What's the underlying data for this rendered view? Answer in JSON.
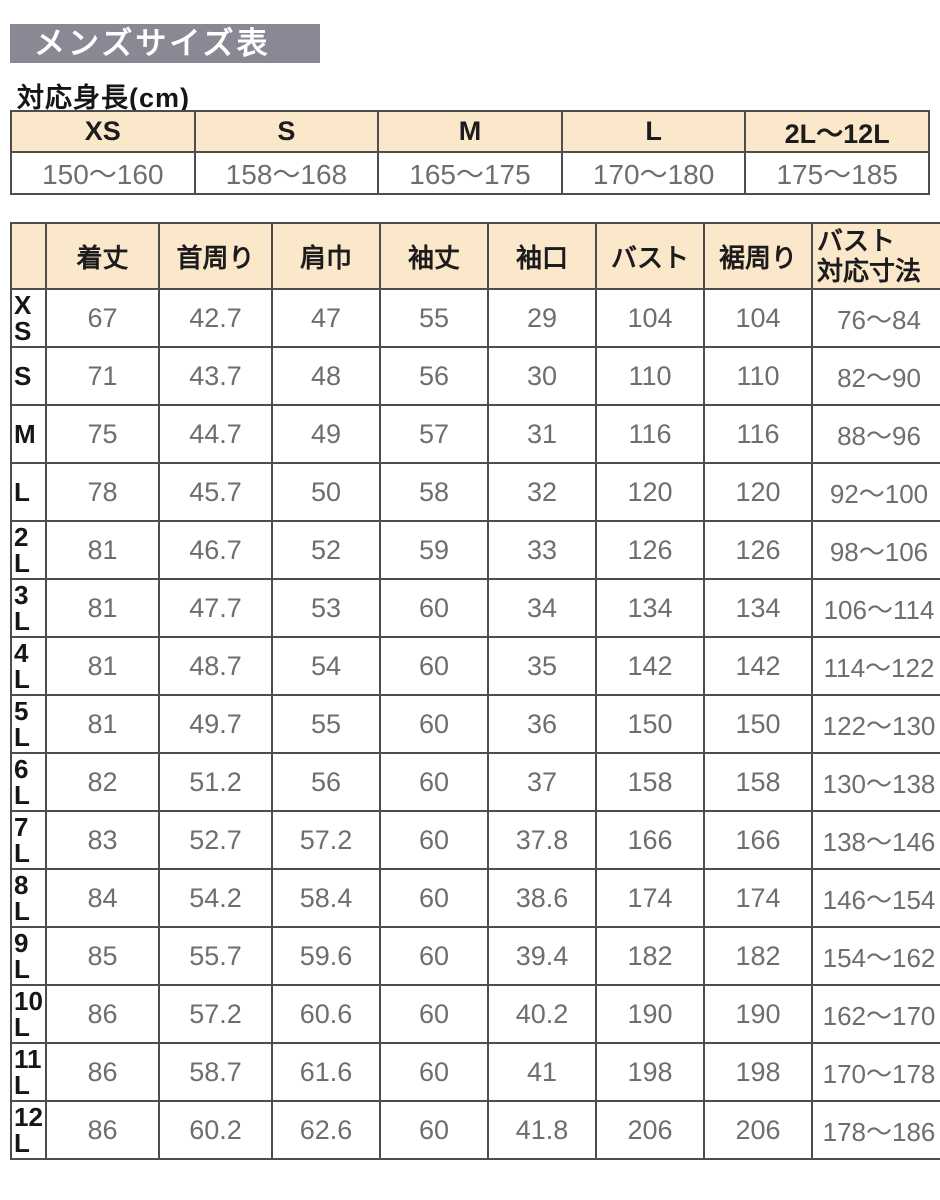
{
  "page_title": "メンズサイズ表",
  "colors": {
    "title_bg": "#8b8794",
    "title_text": "#ffffff",
    "table_header_bg": "#fbe7ca",
    "table_border": "#4d4d4d",
    "header_text": "#1c1c1c",
    "data_text": "#6e6e6e"
  },
  "height_section": {
    "label": "対応身長(cm)",
    "columns": [
      "XS",
      "S",
      "M",
      "L",
      "2L〜12L"
    ],
    "values": [
      "150〜160",
      "158〜168",
      "165〜175",
      "170〜180",
      "175〜185"
    ]
  },
  "size_table": {
    "corner_label": "",
    "columns": [
      "着丈",
      "首周り",
      "肩巾",
      "袖丈",
      "袖口",
      "バスト",
      "裾周り",
      "バスト\n対応寸法"
    ],
    "rows": [
      {
        "size": "XS",
        "label": "X\nS",
        "values": [
          "67",
          "42.7",
          "47",
          "55",
          "29",
          "104",
          "104",
          "76〜84"
        ]
      },
      {
        "size": "S",
        "label": "S",
        "values": [
          "71",
          "43.7",
          "48",
          "56",
          "30",
          "110",
          "110",
          "82〜90"
        ]
      },
      {
        "size": "M",
        "label": "M",
        "values": [
          "75",
          "44.7",
          "49",
          "57",
          "31",
          "116",
          "116",
          "88〜96"
        ]
      },
      {
        "size": "L",
        "label": "L",
        "values": [
          "78",
          "45.7",
          "50",
          "58",
          "32",
          "120",
          "120",
          "92〜100"
        ]
      },
      {
        "size": "2L",
        "label": "2\nL",
        "values": [
          "81",
          "46.7",
          "52",
          "59",
          "33",
          "126",
          "126",
          "98〜106"
        ]
      },
      {
        "size": "3L",
        "label": "3\nL",
        "values": [
          "81",
          "47.7",
          "53",
          "60",
          "34",
          "134",
          "134",
          "106〜114"
        ]
      },
      {
        "size": "4L",
        "label": "4\nL",
        "values": [
          "81",
          "48.7",
          "54",
          "60",
          "35",
          "142",
          "142",
          "114〜122"
        ]
      },
      {
        "size": "5L",
        "label": "5\nL",
        "values": [
          "81",
          "49.7",
          "55",
          "60",
          "36",
          "150",
          "150",
          "122〜130"
        ]
      },
      {
        "size": "6L",
        "label": "6\nL",
        "values": [
          "82",
          "51.2",
          "56",
          "60",
          "37",
          "158",
          "158",
          "130〜138"
        ]
      },
      {
        "size": "7L",
        "label": "7\nL",
        "values": [
          "83",
          "52.7",
          "57.2",
          "60",
          "37.8",
          "166",
          "166",
          "138〜146"
        ]
      },
      {
        "size": "8L",
        "label": "8\nL",
        "values": [
          "84",
          "54.2",
          "58.4",
          "60",
          "38.6",
          "174",
          "174",
          "146〜154"
        ]
      },
      {
        "size": "9L",
        "label": "9\nL",
        "values": [
          "85",
          "55.7",
          "59.6",
          "60",
          "39.4",
          "182",
          "182",
          "154〜162"
        ]
      },
      {
        "size": "10L",
        "label": "10\nL",
        "values": [
          "86",
          "57.2",
          "60.6",
          "60",
          "40.2",
          "190",
          "190",
          "162〜170"
        ]
      },
      {
        "size": "11L",
        "label": "11\nL",
        "values": [
          "86",
          "58.7",
          "61.6",
          "60",
          "41",
          "198",
          "198",
          "170〜178"
        ]
      },
      {
        "size": "12L",
        "label": "12\nL",
        "values": [
          "86",
          "60.2",
          "62.6",
          "60",
          "41.8",
          "206",
          "206",
          "178〜186"
        ]
      }
    ]
  }
}
